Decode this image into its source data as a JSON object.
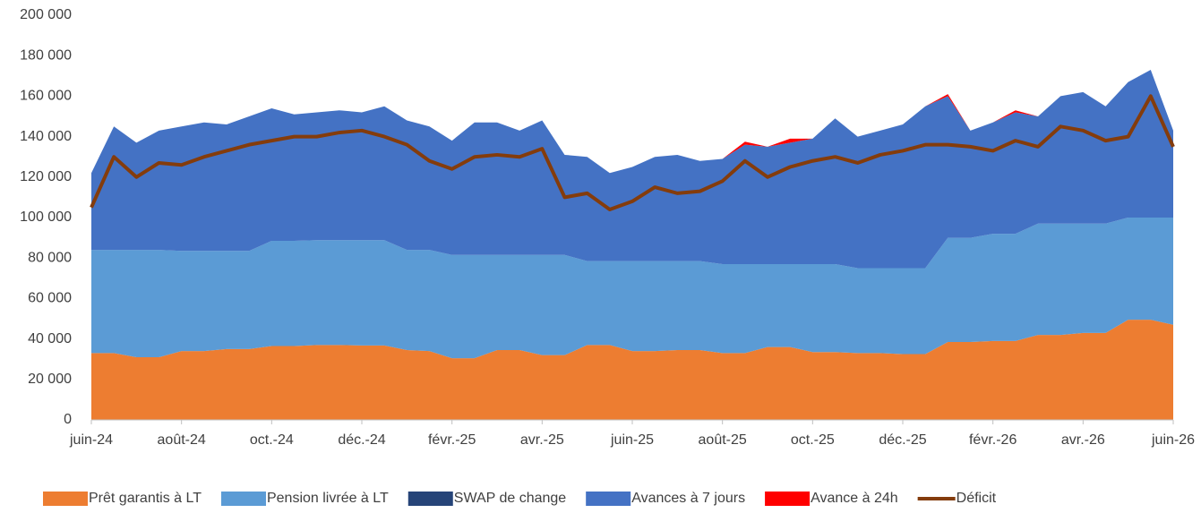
{
  "chart_data": {
    "type": "stacked-area-line",
    "categories": [
      "juin-24",
      null,
      null,
      null,
      "août-24",
      null,
      null,
      null,
      "oct.-24",
      null,
      null,
      null,
      "déc.-24",
      null,
      null,
      null,
      "févr.-25",
      null,
      null,
      null,
      "avr.-25",
      null,
      null,
      null,
      "juin-25",
      null,
      null,
      null,
      "août-25",
      null,
      null,
      null,
      "oct.-25",
      null,
      null,
      null,
      "déc.-25",
      null,
      null,
      null,
      "févr.-26",
      null,
      null,
      null,
      "avr.-26",
      null,
      null,
      null,
      "juin-26"
    ],
    "series": [
      {
        "name": "Prêt garantis à LT",
        "color": "#ed7d31",
        "kind": "area",
        "values": [
          33000,
          33000,
          31000,
          31000,
          34000,
          34000,
          35000,
          35000,
          36500,
          36500,
          37000,
          37000,
          36800,
          36800,
          34500,
          34000,
          30500,
          30500,
          34500,
          34500,
          32000,
          32000,
          37000,
          37000,
          34000,
          34000,
          34500,
          34500,
          33000,
          33000,
          36000,
          36000,
          33500,
          33500,
          33000,
          33000,
          32500,
          32500,
          38500,
          38500,
          39000,
          39000,
          42000,
          42000,
          43000,
          43000,
          49500,
          49500,
          47000
        ]
      },
      {
        "name": "Pension livrée à  LT",
        "color": "#5b9bd5",
        "kind": "area",
        "values": [
          51000,
          51000,
          53000,
          53000,
          49500,
          49500,
          48500,
          48500,
          52000,
          52000,
          51800,
          51800,
          52000,
          52000,
          49500,
          50000,
          51000,
          51000,
          47000,
          47000,
          49500,
          49500,
          41500,
          41500,
          44500,
          44500,
          44000,
          44000,
          44000,
          44000,
          41000,
          41000,
          43500,
          43500,
          42000,
          42000,
          42500,
          42500,
          51500,
          51500,
          53000,
          53000,
          55000,
          55000,
          54000,
          54000,
          50500,
          50500,
          53000
        ]
      },
      {
        "name": "SWAP de change",
        "color": "#264478",
        "kind": "area",
        "values": [
          0,
          0,
          0,
          0,
          0,
          0,
          0,
          0,
          0,
          0,
          0,
          0,
          0,
          0,
          0,
          0,
          0,
          0,
          0,
          0,
          0,
          0,
          0,
          0,
          0,
          0,
          0,
          0,
          0,
          0,
          0,
          0,
          0,
          0,
          0,
          0,
          0,
          0,
          0,
          0,
          0,
          0,
          0,
          0,
          0,
          0,
          0,
          0,
          0
        ]
      },
      {
        "name": "Avances à 7 jours",
        "color": "#4472c4",
        "kind": "area",
        "values": [
          38000,
          61000,
          53000,
          59000,
          61500,
          63500,
          62500,
          66500,
          65500,
          62500,
          63200,
          64200,
          63200,
          66200,
          64000,
          61000,
          56500,
          65500,
          65500,
          61500,
          66500,
          49500,
          51500,
          43500,
          46500,
          51500,
          52500,
          49500,
          52000,
          59000,
          58000,
          60000,
          62000,
          72000,
          65000,
          68000,
          71000,
          80000,
          70000,
          53000,
          55000,
          60000,
          53000,
          63000,
          65000,
          58000,
          67000,
          73000,
          43000
        ]
      },
      {
        "name": "Avance à 24h",
        "color": "#ff0000",
        "kind": "area",
        "values": [
          0,
          0,
          0,
          0,
          0,
          0,
          0,
          0,
          0,
          0,
          0,
          0,
          0,
          0,
          0,
          0,
          0,
          0,
          0,
          0,
          0,
          0,
          0,
          0,
          0,
          0,
          0,
          0,
          0,
          1500,
          0,
          2000,
          0,
          0,
          0,
          0,
          0,
          0,
          1000,
          0,
          0,
          1000,
          0,
          0,
          0,
          0,
          0,
          0,
          0
        ]
      },
      {
        "name": "Déficit",
        "color": "#843c0c",
        "kind": "line",
        "values": [
          105000,
          130000,
          120000,
          127000,
          126000,
          130000,
          133000,
          136000,
          138000,
          140000,
          140000,
          142000,
          143000,
          140000,
          136000,
          128000,
          124000,
          130000,
          131000,
          130000,
          134000,
          110000,
          112000,
          104000,
          108000,
          115000,
          112000,
          113000,
          118000,
          128000,
          120000,
          125000,
          128000,
          130000,
          127000,
          131000,
          133000,
          136000,
          136000,
          135000,
          133000,
          138000,
          135000,
          145000,
          143000,
          138000,
          140000,
          160000,
          135000
        ]
      }
    ],
    "ylim": [
      0,
      200000
    ],
    "yticks": [
      0,
      {
        "value": 20000,
        "label": "20 000"
      },
      {
        "value": 40000,
        "label": "40 000"
      },
      {
        "value": 60000,
        "label": "60 000"
      },
      {
        "value": 80000,
        "label": "80 000"
      },
      {
        "value": 100000,
        "label": "100 000"
      },
      {
        "value": 120000,
        "label": "120 000"
      },
      {
        "value": 140000,
        "label": "140 000"
      },
      {
        "value": 160000,
        "label": "160 000"
      },
      {
        "value": 180000,
        "label": "180 000"
      },
      {
        "value": 200000,
        "label": "200 000"
      }
    ],
    "grid": false,
    "legend": "bottom"
  }
}
